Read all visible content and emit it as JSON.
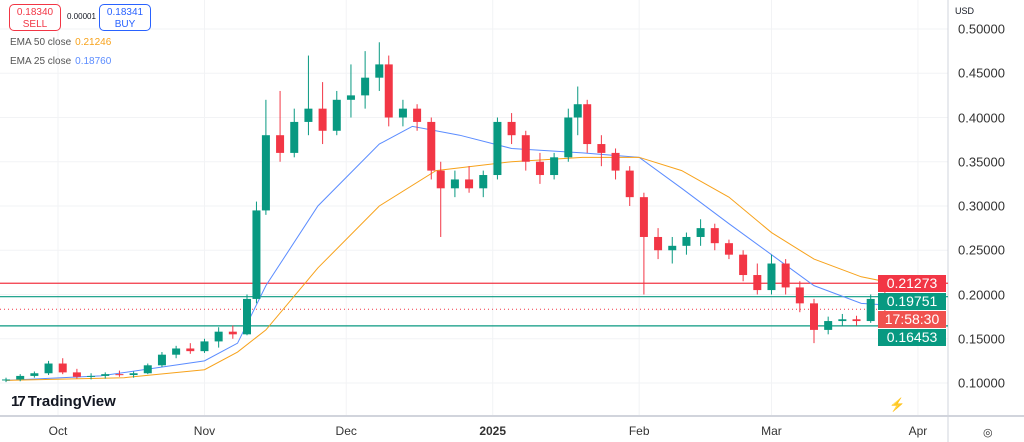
{
  "trade": {
    "sell_price": "0.18340",
    "sell_label": "SELL",
    "spread": "0.00001",
    "buy_price": "0.18341",
    "buy_label": "BUY"
  },
  "legend": [
    {
      "label": "EMA 50 close",
      "value": "0.21246",
      "color": "#f7a21b"
    },
    {
      "label": "EMA 25 close",
      "value": "0.18760",
      "color": "#5b8cff"
    }
  ],
  "brand": "TradingView",
  "currency": "USD",
  "countdown": "17:58:30",
  "price_tags": [
    {
      "value": "0.21273",
      "color": "#f23645"
    },
    {
      "value": "0.19751",
      "color": "#089981"
    },
    {
      "value": "0.16453",
      "color": "#089981"
    }
  ],
  "colors": {
    "up": "#089981",
    "down": "#f23645"
  },
  "chart_data": {
    "type": "candlestick",
    "xaxis": {
      "ticks": [
        "Oct",
        "Nov",
        "Dec",
        "2025",
        "Feb",
        "Mar",
        "Apr"
      ],
      "tick_dates": [
        "2024-10-01",
        "2024-11-01",
        "2024-12-01",
        "2025-01-01",
        "2025-02-01",
        "2025-03-01",
        "2025-04-01"
      ]
    },
    "yaxis": {
      "ticks": [
        "0.50000",
        "0.45000",
        "0.40000",
        "0.35000",
        "0.30000",
        "0.25000",
        "0.20000",
        "0.15000",
        "0.10000"
      ],
      "range": [
        0.085,
        0.515
      ],
      "side": "right"
    },
    "last_price": 0.1834,
    "horizontal_lines": [
      {
        "value": 0.21273,
        "color": "#f23645"
      },
      {
        "value": 0.19751,
        "color": "#089981"
      },
      {
        "value": 0.16453,
        "color": "#089981"
      }
    ],
    "candles": [
      [
        "2024-09-20",
        0.103,
        0.106,
        0.101,
        0.104
      ],
      [
        "2024-09-23",
        0.104,
        0.11,
        0.102,
        0.108
      ],
      [
        "2024-09-26",
        0.108,
        0.113,
        0.106,
        0.111
      ],
      [
        "2024-09-29",
        0.111,
        0.125,
        0.109,
        0.122
      ],
      [
        "2024-10-02",
        0.122,
        0.128,
        0.11,
        0.112
      ],
      [
        "2024-10-05",
        0.112,
        0.116,
        0.105,
        0.107
      ],
      [
        "2024-10-08",
        0.107,
        0.111,
        0.104,
        0.108
      ],
      [
        "2024-10-11",
        0.108,
        0.112,
        0.105,
        0.11
      ],
      [
        "2024-10-14",
        0.11,
        0.114,
        0.107,
        0.109
      ],
      [
        "2024-10-17",
        0.109,
        0.113,
        0.106,
        0.111
      ],
      [
        "2024-10-20",
        0.111,
        0.122,
        0.11,
        0.12
      ],
      [
        "2024-10-23",
        0.12,
        0.135,
        0.118,
        0.132
      ],
      [
        "2024-10-26",
        0.132,
        0.142,
        0.128,
        0.139
      ],
      [
        "2024-10-29",
        0.139,
        0.145,
        0.133,
        0.136
      ],
      [
        "2024-11-01",
        0.136,
        0.15,
        0.134,
        0.147
      ],
      [
        "2024-11-04",
        0.147,
        0.163,
        0.14,
        0.158
      ],
      [
        "2024-11-07",
        0.158,
        0.165,
        0.15,
        0.155
      ],
      [
        "2024-11-10",
        0.155,
        0.2,
        0.154,
        0.195
      ],
      [
        "2024-11-12",
        0.195,
        0.305,
        0.19,
        0.295
      ],
      [
        "2024-11-14",
        0.295,
        0.42,
        0.29,
        0.38
      ],
      [
        "2024-11-17",
        0.38,
        0.43,
        0.35,
        0.36
      ],
      [
        "2024-11-20",
        0.36,
        0.41,
        0.355,
        0.395
      ],
      [
        "2024-11-23",
        0.395,
        0.47,
        0.38,
        0.41
      ],
      [
        "2024-11-26",
        0.41,
        0.44,
        0.37,
        0.385
      ],
      [
        "2024-11-29",
        0.385,
        0.43,
        0.38,
        0.42
      ],
      [
        "2024-12-02",
        0.42,
        0.46,
        0.4,
        0.425
      ],
      [
        "2024-12-05",
        0.425,
        0.475,
        0.41,
        0.445
      ],
      [
        "2024-12-08",
        0.445,
        0.485,
        0.43,
        0.46
      ],
      [
        "2024-12-10",
        0.46,
        0.47,
        0.39,
        0.4
      ],
      [
        "2024-12-13",
        0.4,
        0.42,
        0.39,
        0.41
      ],
      [
        "2024-12-16",
        0.41,
        0.415,
        0.385,
        0.395
      ],
      [
        "2024-12-19",
        0.395,
        0.4,
        0.33,
        0.34
      ],
      [
        "2024-12-21",
        0.34,
        0.35,
        0.265,
        0.32
      ],
      [
        "2024-12-24",
        0.32,
        0.34,
        0.31,
        0.33
      ],
      [
        "2024-12-27",
        0.33,
        0.345,
        0.315,
        0.32
      ],
      [
        "2024-12-30",
        0.32,
        0.34,
        0.31,
        0.335
      ],
      [
        "2025-01-02",
        0.335,
        0.4,
        0.33,
        0.395
      ],
      [
        "2025-01-05",
        0.395,
        0.405,
        0.37,
        0.38
      ],
      [
        "2025-01-08",
        0.38,
        0.385,
        0.34,
        0.35
      ],
      [
        "2025-01-11",
        0.35,
        0.36,
        0.325,
        0.335
      ],
      [
        "2025-01-14",
        0.335,
        0.36,
        0.33,
        0.355
      ],
      [
        "2025-01-17",
        0.355,
        0.41,
        0.35,
        0.4
      ],
      [
        "2025-01-19",
        0.4,
        0.435,
        0.38,
        0.415
      ],
      [
        "2025-01-21",
        0.415,
        0.42,
        0.36,
        0.37
      ],
      [
        "2025-01-24",
        0.37,
        0.38,
        0.345,
        0.36
      ],
      [
        "2025-01-27",
        0.36,
        0.365,
        0.33,
        0.34
      ],
      [
        "2025-01-30",
        0.34,
        0.345,
        0.3,
        0.31
      ],
      [
        "2025-02-02",
        0.31,
        0.315,
        0.2,
        0.265
      ],
      [
        "2025-02-05",
        0.265,
        0.275,
        0.24,
        0.25
      ],
      [
        "2025-02-08",
        0.25,
        0.265,
        0.235,
        0.255
      ],
      [
        "2025-02-11",
        0.255,
        0.27,
        0.245,
        0.265
      ],
      [
        "2025-02-14",
        0.265,
        0.285,
        0.255,
        0.275
      ],
      [
        "2025-02-17",
        0.275,
        0.28,
        0.25,
        0.258
      ],
      [
        "2025-02-20",
        0.258,
        0.262,
        0.24,
        0.245
      ],
      [
        "2025-02-23",
        0.245,
        0.25,
        0.215,
        0.222
      ],
      [
        "2025-02-26",
        0.222,
        0.235,
        0.2,
        0.205
      ],
      [
        "2025-03-01",
        0.205,
        0.245,
        0.2,
        0.235
      ],
      [
        "2025-03-04",
        0.235,
        0.24,
        0.2,
        0.208
      ],
      [
        "2025-03-07",
        0.208,
        0.215,
        0.18,
        0.19
      ],
      [
        "2025-03-10",
        0.19,
        0.195,
        0.145,
        0.16
      ],
      [
        "2025-03-13",
        0.16,
        0.175,
        0.155,
        0.17
      ],
      [
        "2025-03-16",
        0.17,
        0.178,
        0.165,
        0.172
      ],
      [
        "2025-03-19",
        0.172,
        0.176,
        0.165,
        0.17
      ],
      [
        "2025-03-22",
        0.17,
        0.2,
        0.168,
        0.195
      ],
      [
        "2025-03-25",
        0.195,
        0.205,
        0.18,
        0.183
      ]
    ],
    "series": [
      {
        "name": "EMA 25 close",
        "color": "#5b8cff",
        "points": [
          [
            "2024-09-20",
            0.103
          ],
          [
            "2024-10-10",
            0.108
          ],
          [
            "2024-11-01",
            0.125
          ],
          [
            "2024-11-08",
            0.145
          ],
          [
            "2024-11-14",
            0.21
          ],
          [
            "2024-11-25",
            0.3
          ],
          [
            "2024-12-08",
            0.37
          ],
          [
            "2024-12-15",
            0.39
          ],
          [
            "2024-12-25",
            0.38
          ],
          [
            "2025-01-05",
            0.365
          ],
          [
            "2025-01-20",
            0.36
          ],
          [
            "2025-02-01",
            0.355
          ],
          [
            "2025-02-10",
            0.32
          ],
          [
            "2025-02-20",
            0.28
          ],
          [
            "2025-03-01",
            0.245
          ],
          [
            "2025-03-10",
            0.21
          ],
          [
            "2025-03-20",
            0.19
          ],
          [
            "2025-03-27",
            0.1876
          ]
        ]
      },
      {
        "name": "EMA 50 close",
        "color": "#f7a21b",
        "points": [
          [
            "2024-09-20",
            0.103
          ],
          [
            "2024-10-15",
            0.106
          ],
          [
            "2024-11-01",
            0.115
          ],
          [
            "2024-11-08",
            0.135
          ],
          [
            "2024-11-14",
            0.16
          ],
          [
            "2024-11-25",
            0.23
          ],
          [
            "2024-12-08",
            0.3
          ],
          [
            "2024-12-20",
            0.34
          ],
          [
            "2025-01-05",
            0.35
          ],
          [
            "2025-01-20",
            0.355
          ],
          [
            "2025-02-01",
            0.355
          ],
          [
            "2025-02-10",
            0.34
          ],
          [
            "2025-02-20",
            0.31
          ],
          [
            "2025-03-01",
            0.27
          ],
          [
            "2025-03-10",
            0.24
          ],
          [
            "2025-03-20",
            0.22
          ],
          [
            "2025-03-27",
            0.2125
          ]
        ]
      }
    ]
  }
}
